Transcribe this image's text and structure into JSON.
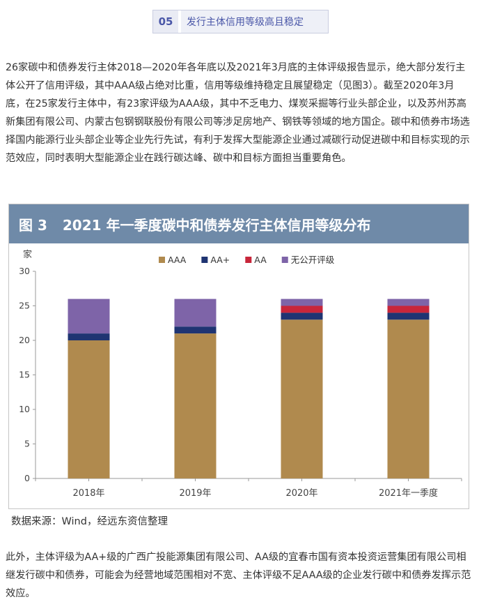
{
  "section": {
    "number": "05",
    "title": "发行主体信用等级高且稳定"
  },
  "paragraph1": "26家碳中和债券发行主体2018—2020年各年底以及2021年3月底的主体评级报告显示，绝大部分发行主体公开了信用评级，其中AAA级占绝对比重，信用等级维持稳定且展望稳定（见图3）。截至2020年3月底，在25家发行主体中，有23家评级为AAA级，其中不乏电力、煤炭采掘等行业头部企业，以及苏州苏高新集团有限公司、内蒙古包钢钢联股份有限公司等涉足房地产、钢铁等领域的地方国企。碳中和债券市场选择国内能源行业头部企业等企业先行先试，有利于发挥大型能源企业通过减碳行动促进碳中和目标实现的示范效应，同时表明大型能源企业在践行碳达峰、碳中和目标方面担当重要角色。",
  "figure": {
    "number": "图 3",
    "title": "2021 年一季度碳中和债券发行主体信用等级分布"
  },
  "source": "数据来源：Wind，经远东资信整理",
  "paragraph2": "此外，主体评级为AA+级的广西广投能源集团有限公司、AA级的宜春市国有资本投资运营集团有限公司相继发行碳中和债券，可能会为经营地域范围相对不宽、主体评级不足AAA级的企业发行碳中和债券发挥示范效应。",
  "chart_data": {
    "type": "bar",
    "stacked": true,
    "title": "2021 年一季度碳中和债券发行主体信用等级分布",
    "ylabel": "家",
    "ylim": [
      0,
      30
    ],
    "yticks": [
      0,
      5,
      10,
      15,
      20,
      25,
      30
    ],
    "categories": [
      "2018年",
      "2019年",
      "2020年",
      "2021年一季度"
    ],
    "series": [
      {
        "name": "AAA",
        "values": [
          20,
          21,
          23,
          23
        ],
        "color": "#b08a4e"
      },
      {
        "name": "AA+",
        "values": [
          1,
          1,
          1,
          1
        ],
        "color": "#1f3472"
      },
      {
        "name": "AA",
        "values": [
          0,
          0,
          1,
          1
        ],
        "color": "#c8263a"
      },
      {
        "name": "无公开评级",
        "values": [
          5,
          4,
          1,
          1
        ],
        "color": "#7e64a8"
      }
    ],
    "legend_position": "top"
  }
}
